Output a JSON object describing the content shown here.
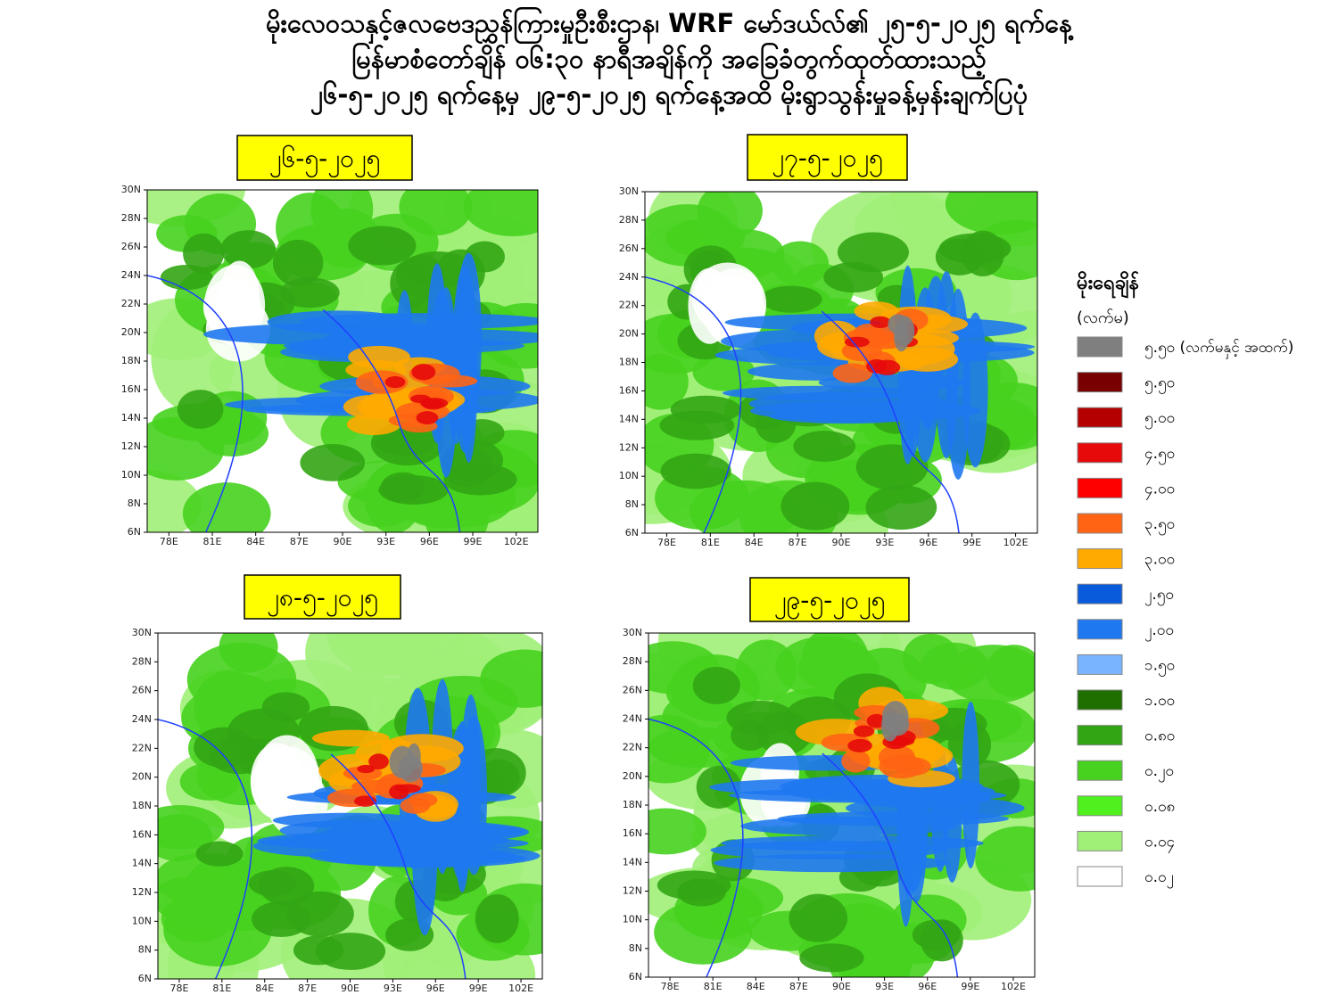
{
  "header": {
    "title_lines": [
      "မိုးလေဝသနှင့်ဇလဗေဒညွှန်ကြားမှုဦးစီးဌာန၊ WRF မော်ဒယ်လ်၏ ၂၅-၅-၂၀၂၅ ရက်နေ့",
      "မြန်မာစံတော်ချိန် ၀၆:၃၀ နာရီအချိန်ကို အခြေခံတွက်ထုတ်ထားသည့်",
      "၂၆-၅-၂၀၂၅ ရက်နေ့မှ ၂၉-၅-၂၀၂၅ ရက်နေ့အထိ မိုးရွာသွန်းမှုခန့်မှန်းချက်ပြပုံ"
    ]
  },
  "panels": [
    {
      "date": "၂၆-၅-၂၀၂၅"
    },
    {
      "date": "၂၇-၅-၂၀၂၅"
    },
    {
      "date": "၂၈-၅-၂၀၂၅"
    },
    {
      "date": "၂၉-၅-၂၀၂၅"
    }
  ],
  "axes": {
    "lat_ticks": [
      "30N",
      "28N",
      "26N",
      "24N",
      "22N",
      "20N",
      "18N",
      "16N",
      "14N",
      "12N",
      "10N",
      "8N",
      "6N"
    ],
    "lon_ticks": [
      "78E",
      "81E",
      "84E",
      "87E",
      "90E",
      "93E",
      "96E",
      "99E",
      "102E"
    ]
  },
  "legend": {
    "title": "မိုးရေချိန်",
    "unit": "(လက်မ)",
    "items": [
      {
        "label": "၅.၅၀ (လက်မနှင့် အထက်)",
        "color": "#7f7f7f"
      },
      {
        "label": "၅.၅၀",
        "color": "#780000"
      },
      {
        "label": "၅.၀၀",
        "color": "#b40000"
      },
      {
        "label": "၄.၅၀",
        "color": "#e60a0a"
      },
      {
        "label": "၄.၀၀",
        "color": "#ff0000"
      },
      {
        "label": "၃.၅၀",
        "color": "#ff6414"
      },
      {
        "label": "၃.၀၀",
        "color": "#ffaa00"
      },
      {
        "label": "၂.၅၀",
        "color": "#0a5adc"
      },
      {
        "label": "၂.၀၀",
        "color": "#1e78f0"
      },
      {
        "label": "၁.၅၀",
        "color": "#78b4ff"
      },
      {
        "label": "၁.၀၀",
        "color": "#1e6e00"
      },
      {
        "label": "၀.၈၀",
        "color": "#32a514"
      },
      {
        "label": "၀.၂၀",
        "color": "#46d21e"
      },
      {
        "label": "၀.၀၈",
        "color": "#50f01e"
      },
      {
        "label": "၀.၀၄",
        "color": "#a0f078"
      },
      {
        "label": "၀.၀၂",
        "color": "#ffffff"
      }
    ]
  }
}
